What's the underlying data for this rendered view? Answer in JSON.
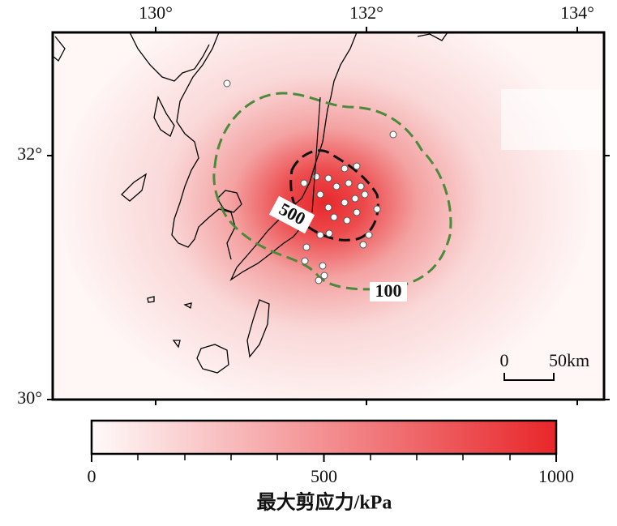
{
  "map": {
    "lon_ticks": [
      {
        "value": 130,
        "label": "130°"
      },
      {
        "value": 132,
        "label": "132°"
      },
      {
        "value": 134,
        "label": "134°"
      }
    ],
    "lat_ticks": [
      {
        "value": 30,
        "label": "30°"
      },
      {
        "value": 32,
        "label": "32°"
      }
    ],
    "contours": [
      {
        "label": "500"
      },
      {
        "label": "100"
      }
    ],
    "scale_bar": {
      "labels": [
        "0",
        "50km"
      ]
    },
    "colorbar": {
      "label": "最大剪应力/kPa",
      "range": [
        0,
        1000
      ],
      "ticks": [
        0,
        500,
        1000
      ]
    }
  }
}
